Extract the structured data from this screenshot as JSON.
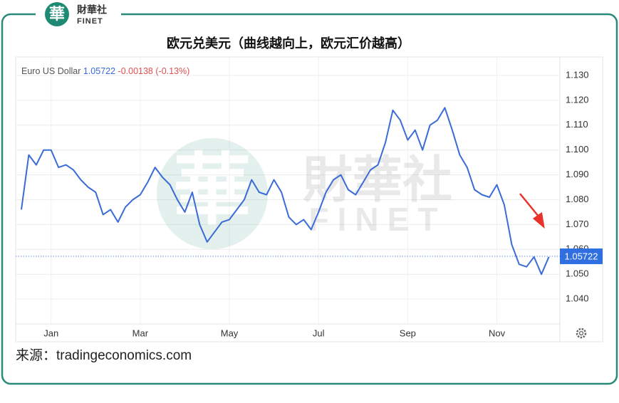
{
  "logo": {
    "mark": "華",
    "name": "財華社",
    "latin": "FINET"
  },
  "chart_data": {
    "type": "line",
    "title": "欧元兑美元（曲线越向上，欧元汇价越高）",
    "source": "来源：tradingeconomics.com",
    "series": [
      {
        "name": "Euro US Dollar",
        "color": "#3a6bd6",
        "values": [
          1.076,
          1.098,
          1.094,
          1.1,
          1.1,
          1.093,
          1.094,
          1.092,
          1.088,
          1.085,
          1.083,
          1.074,
          1.076,
          1.071,
          1.077,
          1.08,
          1.082,
          1.087,
          1.093,
          1.089,
          1.086,
          1.08,
          1.075,
          1.083,
          1.07,
          1.063,
          1.067,
          1.071,
          1.072,
          1.076,
          1.08,
          1.088,
          1.083,
          1.082,
          1.088,
          1.083,
          1.073,
          1.07,
          1.072,
          1.068,
          1.075,
          1.083,
          1.088,
          1.09,
          1.084,
          1.082,
          1.087,
          1.092,
          1.094,
          1.103,
          1.116,
          1.112,
          1.104,
          1.108,
          1.1,
          1.11,
          1.112,
          1.117,
          1.108,
          1.098,
          1.093,
          1.084,
          1.082,
          1.081,
          1.086,
          1.078,
          1.062,
          1.054,
          1.053,
          1.057,
          1.05,
          1.057
        ]
      }
    ],
    "categories": [
      null,
      null,
      null,
      null,
      "Jan",
      null,
      null,
      null,
      null,
      null,
      null,
      null,
      null,
      null,
      null,
      null,
      "Mar",
      null,
      null,
      null,
      null,
      null,
      null,
      null,
      null,
      null,
      null,
      null,
      "May",
      null,
      null,
      null,
      null,
      null,
      null,
      null,
      null,
      null,
      null,
      null,
      "Jul",
      null,
      null,
      null,
      null,
      null,
      null,
      null,
      null,
      null,
      null,
      null,
      "Sep",
      null,
      null,
      null,
      null,
      null,
      null,
      null,
      null,
      null,
      null,
      null,
      "Nov",
      null,
      null,
      null,
      null,
      null,
      null,
      null
    ],
    "last_value": 1.05722,
    "change": -0.00138,
    "change_pct": "(-0.13%)",
    "change_color": "#e05050",
    "ylim": [
      1.03,
      1.136
    ],
    "yticks": [
      {
        "value": 1.04,
        "label": "1.040"
      },
      {
        "value": 1.05,
        "label": "1.050"
      },
      {
        "value": 1.06,
        "label": "1.060"
      },
      {
        "value": 1.07,
        "label": "1.070"
      },
      {
        "value": 1.08,
        "label": "1.080"
      },
      {
        "value": 1.09,
        "label": "1.090"
      },
      {
        "value": 1.1,
        "label": "1.100"
      },
      {
        "value": 1.11,
        "label": "1.110"
      },
      {
        "value": 1.12,
        "label": "1.120"
      },
      {
        "value": 1.13,
        "label": "1.130"
      }
    ],
    "grid": true
  }
}
